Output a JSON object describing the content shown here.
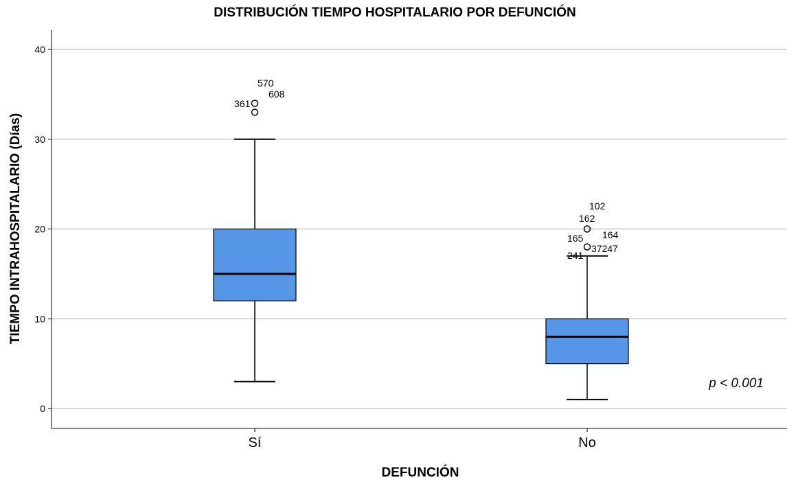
{
  "chart_data": {
    "type": "boxplot",
    "title": "DISTRIBUCIÓN TIEMPO HOSPITALARIO POR DEFUNCIÓN",
    "xlabel": "DEFUNCIÓN",
    "ylabel": "TIEMPO INTRAHOSPITALARIO (Días)",
    "ylim": [
      -2,
      42
    ],
    "yticks": [
      0,
      10,
      20,
      30,
      40
    ],
    "grid": true,
    "box_color": "#5596e6",
    "categories": [
      "Sí",
      "No"
    ],
    "boxes": [
      {
        "category": "Sí",
        "whisker_low": 3,
        "q1": 12,
        "median": 15,
        "q3": 20,
        "whisker_high": 30,
        "outliers": [
          {
            "value": 34,
            "label": "361"
          },
          {
            "value": 33,
            "label": ""
          }
        ],
        "extra_labels": [
          "570",
          "608"
        ]
      },
      {
        "category": "No",
        "whisker_low": 1,
        "q1": 5,
        "median": 8,
        "q3": 10,
        "whisker_high": 17,
        "outliers": [
          {
            "value": 20,
            "label": ""
          },
          {
            "value": 18,
            "label": ""
          }
        ],
        "extra_labels": [
          "102",
          "162",
          "164",
          "165",
          "37247",
          "241"
        ]
      }
    ],
    "annotation": "p < 0.001"
  }
}
